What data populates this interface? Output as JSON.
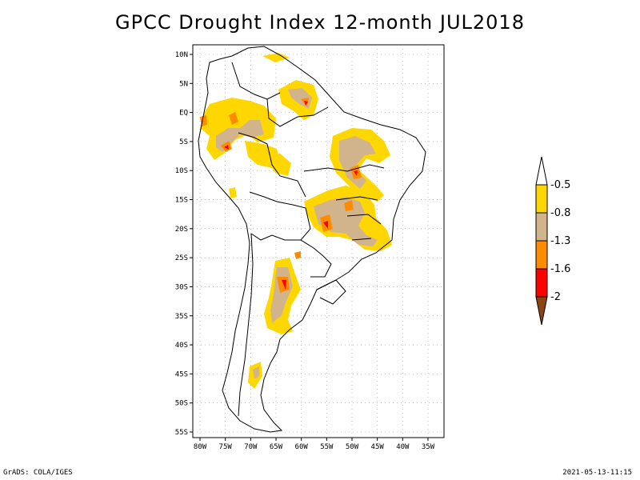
{
  "title": "GPCC Drought Index 12-month JUL2018",
  "footer": {
    "left": "GrADS: COLA/IGES",
    "right": "2021-05-13-11:15"
  },
  "map": {
    "lat_labels": [
      {
        "lat": 10,
        "label": "10N"
      },
      {
        "lat": 5,
        "label": "5N"
      },
      {
        "lat": 0,
        "label": "EQ"
      },
      {
        "lat": -5,
        "label": "5S"
      },
      {
        "lat": -10,
        "label": "10S"
      },
      {
        "lat": -15,
        "label": "15S"
      },
      {
        "lat": -20,
        "label": "20S"
      },
      {
        "lat": -25,
        "label": "25S"
      },
      {
        "lat": -30,
        "label": "30S"
      },
      {
        "lat": -35,
        "label": "35S"
      },
      {
        "lat": -40,
        "label": "40S"
      },
      {
        "lat": -45,
        "label": "45S"
      },
      {
        "lat": -50,
        "label": "50S"
      },
      {
        "lat": -55,
        "label": "55S"
      }
    ],
    "lon_labels": [
      {
        "lon": -80,
        "label": "80W"
      },
      {
        "lon": -75,
        "label": "75W"
      },
      {
        "lon": -70,
        "label": "70W"
      },
      {
        "lon": -65,
        "label": "65W"
      },
      {
        "lon": -60,
        "label": "60W"
      },
      {
        "lon": -55,
        "label": "55W"
      },
      {
        "lon": -50,
        "label": "50W"
      },
      {
        "lon": -45,
        "label": "45W"
      },
      {
        "lon": -40,
        "label": "40W"
      },
      {
        "lon": -35,
        "label": "35W"
      }
    ]
  },
  "legend": {
    "labels": [
      "-0.5",
      "-0.8",
      "-1.3",
      "-1.6",
      "-2"
    ],
    "colors": [
      "#ffffff",
      "#ffd700",
      "#d2b48c",
      "#ff8c00",
      "#ff0000",
      "#8b4513"
    ]
  }
}
